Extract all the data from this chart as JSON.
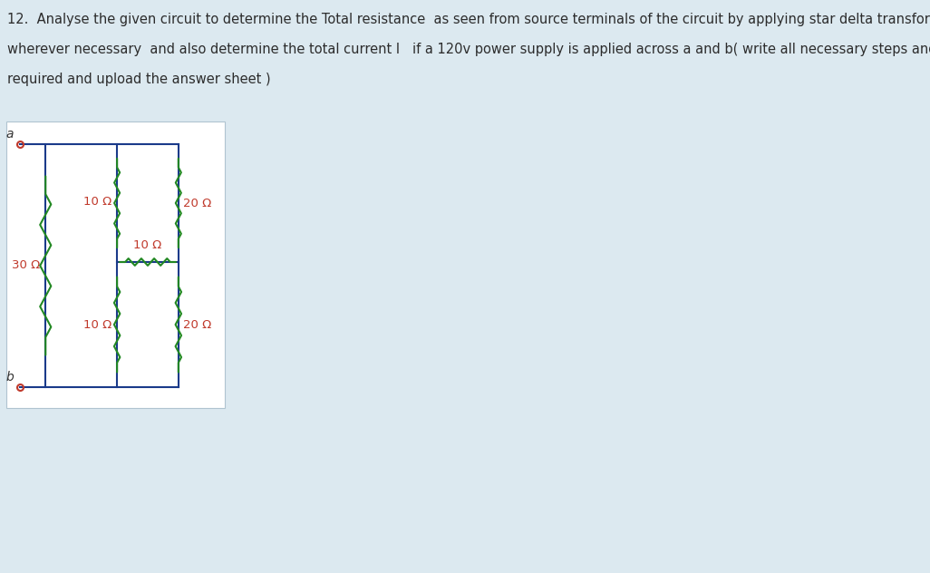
{
  "title_lines": [
    "12.  Analyse the given circuit to determine the Total resistance  as seen from source terminals of the circuit by applying star delta transformations",
    "wherever necessary  and also determine the total current I   if a 120v power supply is applied across a and b( write all necessary steps and formulae",
    "required and upload the answer sheet )"
  ],
  "title_color": "#2c2c2c",
  "bg_color": "#dce9f0",
  "circuit_bg": "#ffffff",
  "circuit_border": "#b0c4d0",
  "wire_color": "#1a3a8a",
  "resistor_color": "#228822",
  "label_color": "#c0392b",
  "terminal_circle_color": "#c0392b",
  "terminal_label_color": "#333333",
  "font_size_title": 10.5,
  "font_size_labels": 9.5,
  "font_size_terminals": 10,
  "R30_label": "30 Ω",
  "R10t_label": "10 Ω",
  "R10b_label": "10 Ω",
  "R10h_label": "10 Ω",
  "R20t_label": "20 Ω",
  "R20b_label": "20 Ω",
  "term_a": "a",
  "term_b": "b"
}
